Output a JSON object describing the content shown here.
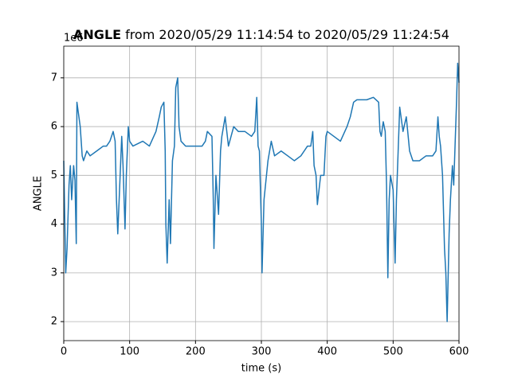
{
  "chart_data": {
    "type": "line",
    "title_parts": [
      "ANGLE",
      "from 2020/05/29 11:14:54 to 2020/05/29 11:24:54"
    ],
    "offset_text": "1e6",
    "xlabel": "time (s)",
    "ylabel": "ANGLE",
    "color": "#1f77b4",
    "grid": true,
    "xlim": [
      0,
      600
    ],
    "xticks": [
      0,
      100,
      200,
      300,
      400,
      500,
      600
    ],
    "ylim": [
      1.61,
      7.65
    ],
    "yticks": [
      2,
      3,
      4,
      5,
      6,
      7
    ],
    "x": [
      0,
      3,
      5,
      8,
      10,
      12,
      15,
      17,
      19,
      20,
      22,
      25,
      28,
      30,
      35,
      40,
      50,
      60,
      65,
      70,
      75,
      78,
      80,
      82,
      85,
      88,
      90,
      93,
      95,
      98,
      100,
      105,
      120,
      130,
      140,
      145,
      148,
      152,
      154,
      155,
      157,
      160,
      162,
      165,
      168,
      170,
      173,
      175,
      178,
      185,
      200,
      210,
      215,
      218,
      225,
      227,
      228,
      231,
      235,
      238,
      240,
      245,
      250,
      258,
      265,
      275,
      285,
      290,
      293,
      295,
      297,
      300,
      301,
      304,
      307,
      310,
      315,
      320,
      330,
      340,
      350,
      360,
      370,
      375,
      378,
      380,
      383,
      385,
      390,
      395,
      398,
      400,
      410,
      420,
      430,
      435,
      440,
      445,
      460,
      470,
      478,
      480,
      482,
      485,
      488,
      490,
      492,
      494,
      496,
      500,
      503,
      505,
      510,
      515,
      520,
      525,
      530,
      540,
      550,
      560,
      565,
      568,
      570,
      572,
      575,
      578,
      580,
      582,
      585,
      587,
      590,
      592,
      594,
      596,
      598,
      600
    ],
    "values": [
      5.3,
      3.0,
      3.5,
      4.8,
      5.2,
      4.5,
      5.2,
      4.9,
      3.6,
      6.5,
      6.3,
      6.0,
      5.4,
      5.3,
      5.5,
      5.4,
      5.5,
      5.6,
      5.6,
      5.7,
      5.9,
      5.7,
      4.5,
      3.8,
      4.8,
      5.8,
      5.2,
      3.9,
      5.0,
      6.0,
      5.7,
      5.6,
      5.7,
      5.6,
      5.9,
      6.2,
      6.4,
      6.5,
      5.5,
      4.0,
      3.2,
      4.5,
      3.6,
      5.3,
      5.6,
      6.8,
      7.0,
      6.0,
      5.7,
      5.6,
      5.6,
      5.6,
      5.7,
      5.9,
      5.8,
      4.5,
      3.5,
      5.0,
      4.2,
      5.5,
      5.8,
      6.2,
      5.6,
      6.0,
      5.9,
      5.9,
      5.8,
      5.9,
      6.6,
      5.6,
      5.5,
      4.0,
      3.0,
      4.5,
      4.9,
      5.3,
      5.7,
      5.4,
      5.5,
      5.4,
      5.3,
      5.4,
      5.6,
      5.6,
      5.9,
      5.2,
      5.0,
      4.4,
      5.0,
      5.0,
      5.8,
      5.9,
      5.8,
      5.7,
      6.0,
      6.2,
      6.5,
      6.55,
      6.55,
      6.6,
      6.5,
      5.9,
      5.8,
      6.1,
      5.9,
      4.8,
      2.9,
      4.5,
      5.0,
      4.7,
      3.2,
      4.5,
      6.4,
      5.9,
      6.2,
      5.5,
      5.3,
      5.3,
      5.4,
      5.4,
      5.5,
      6.2,
      5.8,
      5.6,
      5.0,
      3.5,
      3.0,
      2.0,
      3.8,
      4.5,
      5.2,
      4.8,
      5.6,
      6.4,
      7.3,
      6.9
    ]
  }
}
